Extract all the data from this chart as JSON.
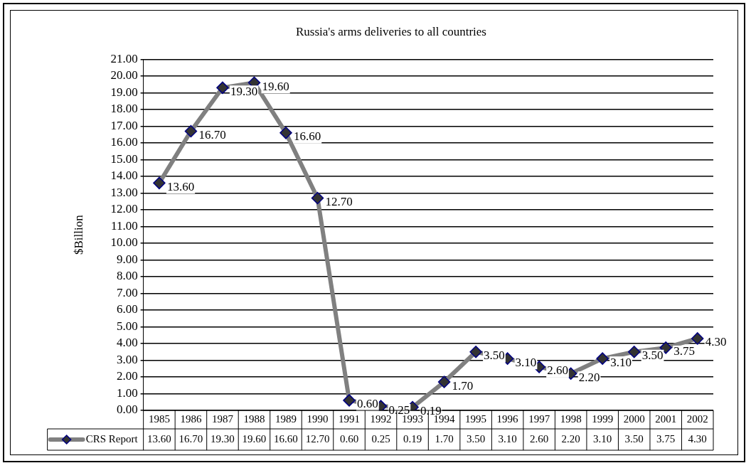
{
  "chart_data": {
    "type": "line",
    "title": "Russia's arms deliveries to all countries",
    "ylabel": "$Billion",
    "categories": [
      "1985",
      "1986",
      "1987",
      "1988",
      "1989",
      "1990",
      "1991",
      "1992",
      "1993",
      "1994",
      "1995",
      "1996",
      "1997",
      "1998",
      "1999",
      "2000",
      "2001",
      "2002"
    ],
    "series": [
      {
        "name": "CRS Report",
        "color": "#808080",
        "values": [
          13.6,
          16.7,
          19.3,
          19.6,
          16.6,
          12.7,
          0.6,
          0.25,
          0.19,
          1.7,
          3.5,
          3.1,
          2.6,
          2.2,
          3.1,
          3.5,
          3.75,
          4.3
        ],
        "value_labels": [
          "13.60",
          "16.70",
          "19.30",
          "19.60",
          "16.60",
          "12.70",
          "0.60",
          "0.25",
          "0.19",
          "1.70",
          "3.50",
          "3.10",
          "2.60",
          "2.20",
          "3.10",
          "3.50",
          "3.75",
          "4.30"
        ]
      }
    ],
    "ylim": [
      0,
      21
    ],
    "yticks": [
      {
        "value": 0,
        "label": "0.00"
      },
      {
        "value": 1,
        "label": "1.00"
      },
      {
        "value": 2,
        "label": "2.00"
      },
      {
        "value": 3,
        "label": "3.00"
      },
      {
        "value": 4,
        "label": "4.00"
      },
      {
        "value": 5,
        "label": "5.00"
      },
      {
        "value": 6,
        "label": "6.00"
      },
      {
        "value": 7,
        "label": "7.00"
      },
      {
        "value": 8,
        "label": "8.00"
      },
      {
        "value": 9,
        "label": "9.00"
      },
      {
        "value": 10,
        "label": "10.00"
      },
      {
        "value": 11,
        "label": "11.00"
      },
      {
        "value": 12,
        "label": "12.00"
      },
      {
        "value": 13,
        "label": "13.00"
      },
      {
        "value": 14,
        "label": "14.00"
      },
      {
        "value": 15,
        "label": "15.00"
      },
      {
        "value": 16,
        "label": "16.00"
      },
      {
        "value": 17,
        "label": "17.00"
      },
      {
        "value": 18,
        "label": "18.00"
      },
      {
        "value": 19,
        "label": "19.00"
      },
      {
        "value": 20,
        "label": "20.00"
      },
      {
        "value": 21,
        "label": "21.00"
      }
    ],
    "grid": "y",
    "legend": "bottom",
    "marker": "diamond",
    "line_style": "solid"
  }
}
